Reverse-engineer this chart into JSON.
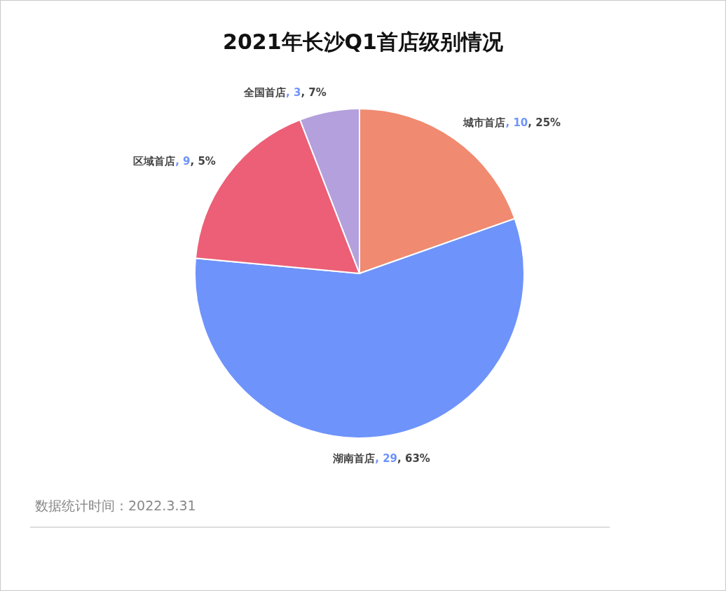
{
  "chart_data": {
    "type": "pie",
    "title": "2021年长沙Q1首店级别情况",
    "categories": [
      "城市首店",
      "湖南首店",
      "区域首店",
      "全国首店"
    ],
    "values": [
      10,
      29,
      9,
      3
    ],
    "colors": [
      "#f08a70",
      "#6e93fb",
      "#ec5f77",
      "#b4a0dc"
    ],
    "value_labels": [
      ", 10, 25%",
      ", 29, 63%",
      ", 9, 5%",
      ", 3, 7%"
    ],
    "legend": false,
    "annotations": [
      "数据统计时间：2022.3.31"
    ]
  }
}
